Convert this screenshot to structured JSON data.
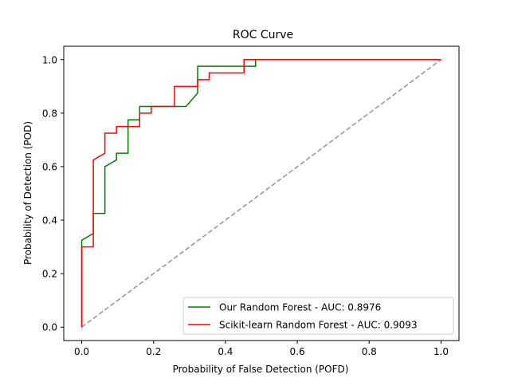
{
  "chart_data": {
    "type": "line",
    "title": "ROC Curve",
    "xlabel": "Probability of False Detection (POFD)",
    "ylabel": "Probability of Detection (POD)",
    "xlim": [
      -0.05,
      1.05
    ],
    "ylim": [
      -0.05,
      1.05
    ],
    "xticks": [
      0.0,
      0.2,
      0.4,
      0.6,
      0.8,
      1.0
    ],
    "yticks": [
      0.0,
      0.2,
      0.4,
      0.6,
      0.8,
      1.0
    ],
    "xtick_labels": [
      "0.0",
      "0.2",
      "0.4",
      "0.6",
      "0.8",
      "1.0"
    ],
    "ytick_labels": [
      "0.0",
      "0.2",
      "0.4",
      "0.6",
      "0.8",
      "1.0"
    ],
    "grid": false,
    "legend_position": "lower-right",
    "series": [
      {
        "name": "Our Random Forest - AUC: 0.8976",
        "color": "#008000",
        "x": [
          0.0,
          0.0,
          0.0323,
          0.0323,
          0.0645,
          0.0645,
          0.0968,
          0.0968,
          0.129,
          0.129,
          0.1613,
          0.1613,
          0.2903,
          0.3226,
          0.3226,
          0.4839,
          0.4839,
          1.0
        ],
        "y": [
          0.0,
          0.325,
          0.35,
          0.425,
          0.425,
          0.6,
          0.625,
          0.65,
          0.65,
          0.775,
          0.775,
          0.825,
          0.825,
          0.875,
          0.975,
          0.975,
          1.0,
          1.0
        ]
      },
      {
        "name": "Scikit-learn Random Forest - AUC: 0.9093",
        "color": "#ff0000",
        "x": [
          0.0,
          0.0,
          0.0323,
          0.0323,
          0.0645,
          0.0645,
          0.0968,
          0.0968,
          0.1613,
          0.1613,
          0.1935,
          0.1935,
          0.2581,
          0.2581,
          0.3226,
          0.3226,
          0.3548,
          0.3548,
          0.4516,
          0.4516,
          1.0
        ],
        "y": [
          0.0,
          0.3,
          0.3,
          0.625,
          0.65,
          0.725,
          0.725,
          0.75,
          0.75,
          0.8,
          0.8,
          0.825,
          0.825,
          0.9,
          0.9,
          0.925,
          0.925,
          0.95,
          0.95,
          1.0,
          1.0
        ]
      },
      {
        "color": "#999999",
        "dashed": true,
        "x": [
          0.0,
          1.0
        ],
        "y": [
          0.0,
          1.0
        ]
      }
    ]
  }
}
